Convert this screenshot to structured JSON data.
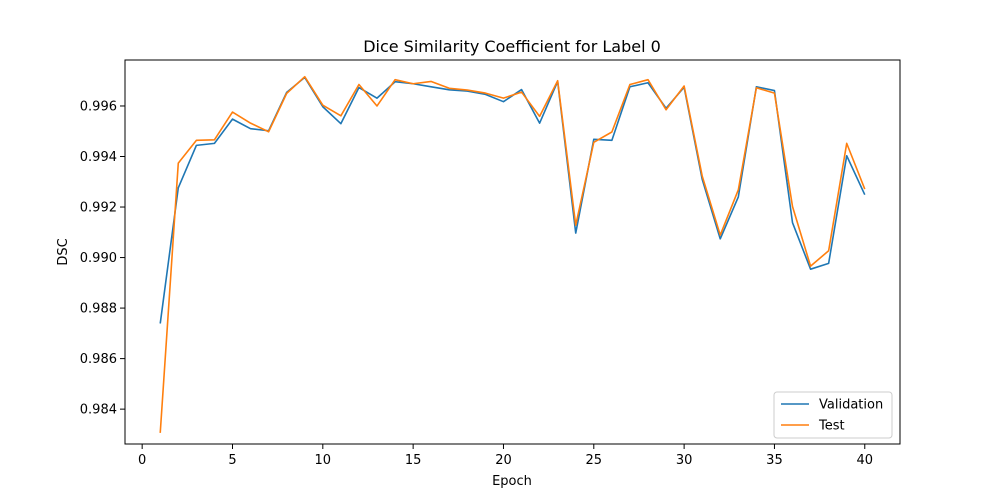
{
  "chart_data": {
    "type": "line",
    "title": "Dice Similarity Coefficient for Label 0",
    "xlabel": "Epoch",
    "ylabel": "DSC",
    "xlim": [
      -0.95,
      41.95
    ],
    "ylim": [
      0.98262,
      0.99782
    ],
    "xticks": [
      0,
      5,
      10,
      15,
      20,
      25,
      30,
      35,
      40
    ],
    "xtick_labels": [
      "0",
      "5",
      "10",
      "15",
      "20",
      "25",
      "30",
      "35",
      "40"
    ],
    "yticks": [
      0.984,
      0.986,
      0.988,
      0.99,
      0.992,
      0.994,
      0.996
    ],
    "ytick_labels": [
      "0.984",
      "0.986",
      "0.988",
      "0.990",
      "0.992",
      "0.994",
      "0.996"
    ],
    "legend": "lower-right",
    "grid": false,
    "x": [
      1,
      2,
      3,
      4,
      5,
      6,
      7,
      8,
      9,
      10,
      11,
      12,
      13,
      14,
      15,
      16,
      17,
      18,
      19,
      20,
      21,
      22,
      23,
      24,
      25,
      26,
      27,
      28,
      29,
      30,
      31,
      32,
      33,
      34,
      35,
      36,
      37,
      38,
      39,
      40
    ],
    "series": [
      {
        "name": "Validation",
        "color": "#1f77b4",
        "values": [
          0.98739,
          0.99276,
          0.99444,
          0.99452,
          0.99548,
          0.9951,
          0.99502,
          0.99654,
          0.99713,
          0.99597,
          0.9953,
          0.99673,
          0.99631,
          0.99696,
          0.99688,
          0.99676,
          0.99664,
          0.99659,
          0.99646,
          0.99617,
          0.99665,
          0.99532,
          0.99697,
          0.99097,
          0.99468,
          0.99464,
          0.99676,
          0.99692,
          0.99591,
          0.99674,
          0.9931,
          0.99074,
          0.9924,
          0.99676,
          0.99661,
          0.99138,
          0.98954,
          0.98977,
          0.99403,
          0.99249
        ]
      },
      {
        "name": "Test",
        "color": "#ff7f0e",
        "values": [
          0.98306,
          0.99374,
          0.99464,
          0.99466,
          0.99576,
          0.99532,
          0.99498,
          0.9965,
          0.99716,
          0.99603,
          0.99561,
          0.99685,
          0.996,
          0.99704,
          0.99688,
          0.99697,
          0.9967,
          0.99663,
          0.99651,
          0.99631,
          0.99655,
          0.99559,
          0.997,
          0.99128,
          0.99456,
          0.99497,
          0.99685,
          0.99704,
          0.99585,
          0.99679,
          0.99323,
          0.99089,
          0.99268,
          0.99672,
          0.99651,
          0.99202,
          0.98966,
          0.99027,
          0.99452,
          0.99271
        ]
      }
    ]
  }
}
